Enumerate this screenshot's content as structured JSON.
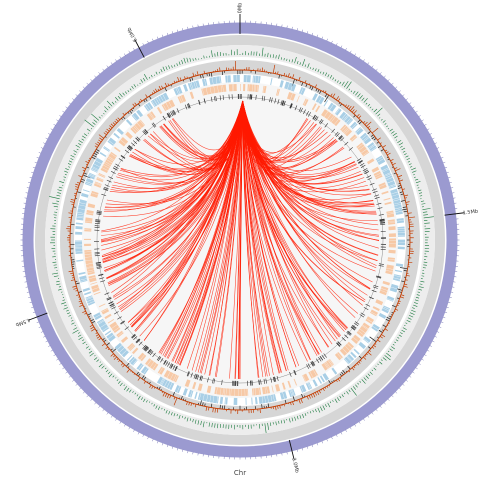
{
  "genome": {
    "chromosome_label": "Chr",
    "total_mb": 6.5,
    "major_labels": [
      "0Mb",
      "1.5Mb",
      "3.0Mb",
      "4.5Mb",
      "6.0Mb"
    ],
    "major_values_mb": [
      0,
      1.5,
      3.0,
      4.5,
      6.0
    ]
  },
  "colors": {
    "ideogram": "#9b9ad0",
    "gc_track": "#1b7a3e",
    "skew_pos": "#c43c00",
    "skew_neg": "#222222",
    "cds_plus": "#a9cfe6",
    "cds_minus": "#f7c9a6",
    "link": "#ff1a00",
    "band_grey": "#d6d6d6",
    "band_light": "#ededed"
  },
  "links": {
    "hub_position_mb": 0.02,
    "count": 240
  }
}
